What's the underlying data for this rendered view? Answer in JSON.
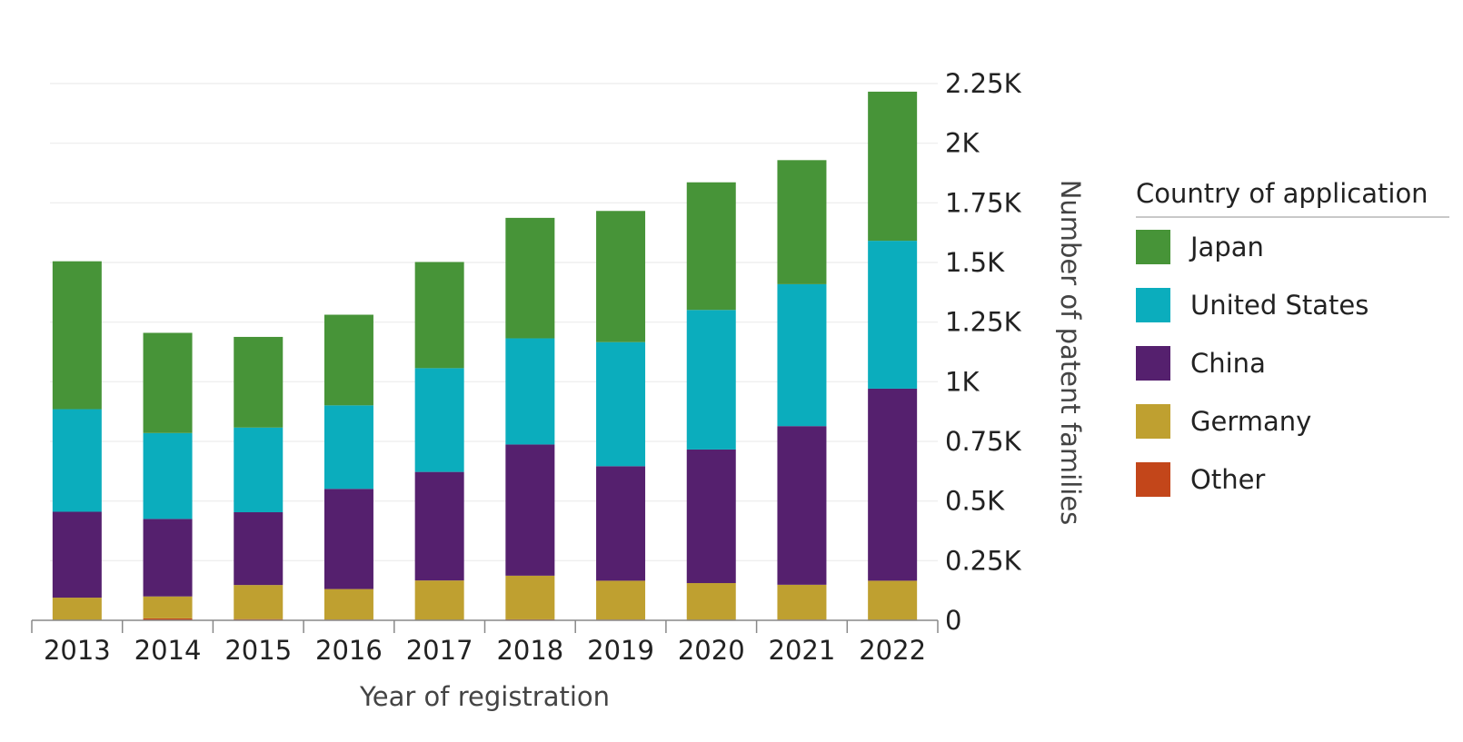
{
  "chart_data": {
    "type": "bar",
    "stacked": true,
    "categories": [
      "2013",
      "2014",
      "2015",
      "2016",
      "2017",
      "2018",
      "2019",
      "2020",
      "2021",
      "2022"
    ],
    "series": [
      {
        "name": "Other",
        "color": "#c3461a",
        "values": [
          2,
          8,
          5,
          3,
          2,
          4,
          3,
          1,
          3,
          1
        ]
      },
      {
        "name": "Germany",
        "color": "#bfa030",
        "values": [
          93,
          92,
          143,
          128,
          165,
          183,
          163,
          155,
          146,
          165
        ]
      },
      {
        "name": "China",
        "color": "#55206e",
        "values": [
          360,
          325,
          305,
          420,
          455,
          550,
          480,
          560,
          665,
          805
        ]
      },
      {
        "name": "United States",
        "color": "#0badbd",
        "values": [
          430,
          360,
          355,
          350,
          435,
          445,
          520,
          585,
          595,
          620
        ]
      },
      {
        "name": "Japan",
        "color": "#479438",
        "values": [
          620,
          420,
          380,
          380,
          445,
          505,
          550,
          535,
          520,
          625
        ]
      }
    ],
    "yticks": [
      0,
      250,
      500,
      750,
      1000,
      1250,
      1500,
      1750,
      2000,
      2250
    ],
    "ytick_labels": [
      "0",
      "0.25K",
      "0.5K",
      "0.75K",
      "1K",
      "1.25K",
      "1.5K",
      "1.75K",
      "2K",
      "2.25K"
    ],
    "ylim": [
      0,
      2250
    ],
    "xlabel": "Year of registration",
    "ylabel": "Number of patent families",
    "y_axis_position": "right",
    "grid": true,
    "legend": {
      "title": "Country of application",
      "position": "right",
      "entries": [
        "Japan",
        "United States",
        "China",
        "Germany",
        "Other"
      ]
    }
  }
}
